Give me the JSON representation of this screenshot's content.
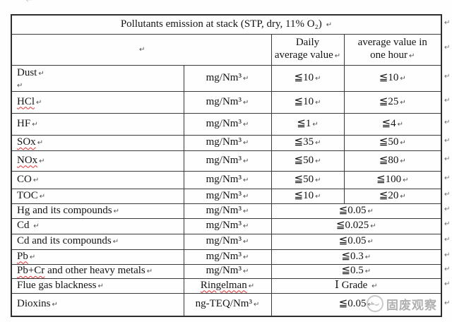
{
  "table": {
    "title": "Pollutants emission at stack (STP, dry, 11% O₂)",
    "pilcrow_mark": "↵",
    "header": {
      "daily_lines": [
        "Daily",
        "average value"
      ],
      "hourly_lines": [
        "average value in",
        "one hour"
      ]
    },
    "rows": [
      {
        "label": "Dust",
        "unit": "mg/Nm³",
        "daily": "≦10",
        "hourly": "≦10",
        "extra_mark_line": true
      },
      {
        "label_wavy": "HCl",
        "label": "",
        "unit": "mg/Nm³",
        "daily": "≦10",
        "hourly": "≦25"
      },
      {
        "label": "HF",
        "unit": "mg/Nm³",
        "daily": "≦1",
        "hourly": "≦4"
      },
      {
        "label_wavy": "SOx",
        "label": "",
        "unit": "mg/Nm³",
        "daily": "≦35",
        "hourly": "≦50"
      },
      {
        "label_wavy": "NOx",
        "label": "",
        "unit": "mg/Nm³",
        "daily": "≦50",
        "hourly": "≦80"
      },
      {
        "label": "CO",
        "unit": "mg/Nm³",
        "daily": "≦50",
        "hourly": "≦100"
      },
      {
        "label": "TOC",
        "unit": "mg/Nm³",
        "daily": "≦10",
        "hourly": "≦20"
      },
      {
        "label": "Hg and its compounds",
        "unit": "mg/Nm³",
        "merged": "≦0.05"
      },
      {
        "label": "Cd ",
        "unit": "mg/Nm³",
        "merged": "≦0.025"
      },
      {
        "label": "Cd and its compounds",
        "unit": "mg/Nm³",
        "merged": "≦0.05"
      },
      {
        "label_wavy": "Pb",
        "label": "",
        "unit": "mg/Nm³",
        "merged": "≦0.3"
      },
      {
        "label_wavy": "Pb+Cr",
        "label": " and other heavy metals",
        "unit": "mg/Nm³",
        "merged": "≦0.5"
      },
      {
        "label": "Flue gas blackness",
        "unit": "Ringelman",
        "unit_wavy": true,
        "merged": "Ⅰ Grade "
      },
      {
        "label": "Dioxins",
        "unit": "ng-TEQ/Nm³",
        "merged": "≦0.05"
      }
    ]
  },
  "watermark": {
    "logo_icon": "circle-doodle-logo",
    "text": "固废观察"
  },
  "colors": {
    "spellcheck_underline": "#e03131",
    "table_border": "#3a3a3a",
    "watermark_gray": "#aaaaaa"
  }
}
